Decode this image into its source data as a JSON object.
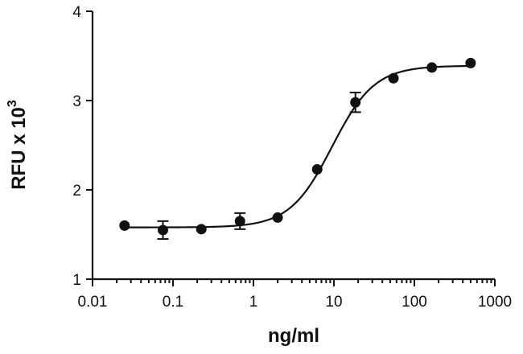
{
  "chart_data": {
    "type": "scatter",
    "xlabel": "ng/ml",
    "ylabel": "RFU x 10",
    "ylabel_superscript": "3",
    "xscale": "log",
    "xlim": [
      0.01,
      1000
    ],
    "ylim": [
      1,
      4
    ],
    "xticks": [
      "0.01",
      "0.1",
      "1",
      "10",
      "100",
      "1000"
    ],
    "yticks": [
      "1",
      "2",
      "3",
      "4"
    ],
    "grid": false,
    "legend": "none",
    "series": [
      {
        "x": [
          0.025,
          0.075,
          0.225,
          0.68,
          2.0,
          6.2,
          18.5,
          55,
          165,
          500
        ],
        "y": [
          1.6,
          1.55,
          1.56,
          1.65,
          1.69,
          2.23,
          2.98,
          3.25,
          3.37,
          3.42
        ],
        "error": [
          0.02,
          0.1,
          0.03,
          0.09,
          0.02,
          0.02,
          0.11,
          0.03,
          0.02,
          0.02
        ]
      }
    ],
    "fit": {
      "model": "4-parameter logistic",
      "bottom": 1.58,
      "top": 3.39,
      "ec50": 9.5,
      "hill": 1.65,
      "x_range": [
        0.025,
        500
      ]
    }
  }
}
